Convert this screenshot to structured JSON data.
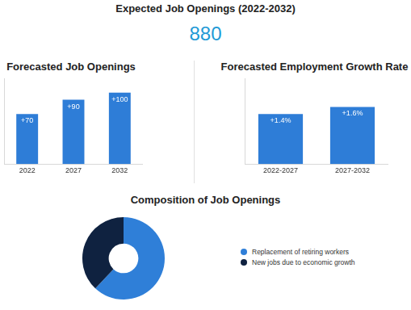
{
  "header": {
    "title": "Expected Job Openings (2022-2032)",
    "value": 880
  },
  "chart_data": [
    {
      "type": "bar",
      "title": "Forecasted Job Openings",
      "categories": [
        "2022",
        "2027",
        "2032"
      ],
      "values": [
        70,
        90,
        100
      ],
      "value_labels": [
        "+70",
        "+90",
        "+100"
      ],
      "data_labels": true,
      "color": "#2e7dd7",
      "ylim": [
        0,
        120
      ],
      "tick_labels": "x",
      "grid": false
    },
    {
      "type": "bar",
      "title": "Forecasted Employment Growth Rate",
      "categories": [
        "2022-2027",
        "2027-2032"
      ],
      "values": [
        1.4,
        1.6
      ],
      "value_labels": [
        "+1.4%",
        "+1.6%"
      ],
      "data_labels": true,
      "color": "#2e7dd7",
      "ylim": [
        0,
        2.4
      ],
      "tick_labels": "x",
      "grid": false
    },
    {
      "type": "doughnut",
      "title": "Composition of Job Openings",
      "categories": [
        "Replacement of retiring workers",
        "New jobs due to economic growth"
      ],
      "values": [
        62,
        38
      ],
      "colors": [
        "#2f7fd8",
        "#0f2240"
      ],
      "legend": "right"
    }
  ]
}
